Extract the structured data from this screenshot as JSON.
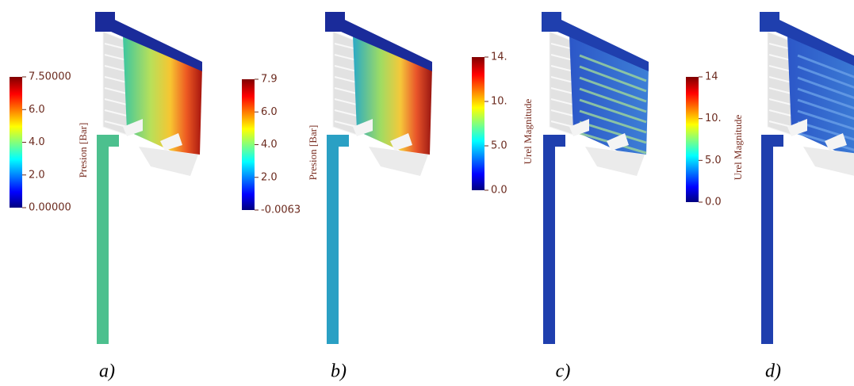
{
  "panels": [
    {
      "label": "a)",
      "colorbar": {
        "title": "Presion [Bar]",
        "ticks": [
          "7.50000",
          "6.0",
          "4.0",
          "2.0",
          "0.00000"
        ]
      }
    },
    {
      "label": "b)",
      "colorbar": {
        "title": "Presion [Bar]",
        "ticks": [
          "7.9",
          "6.0",
          "4.0",
          "2.0",
          "-0.0063"
        ]
      }
    },
    {
      "label": "c)",
      "colorbar": {
        "title": "Urel Magnitude",
        "ticks": [
          "14.",
          "10.",
          "5.0",
          "0.0"
        ]
      }
    },
    {
      "label": "d)",
      "colorbar": {
        "title": "Urel Magnitude",
        "ticks": [
          "14",
          "10.",
          "5.0",
          "0.0"
        ]
      }
    }
  ]
}
